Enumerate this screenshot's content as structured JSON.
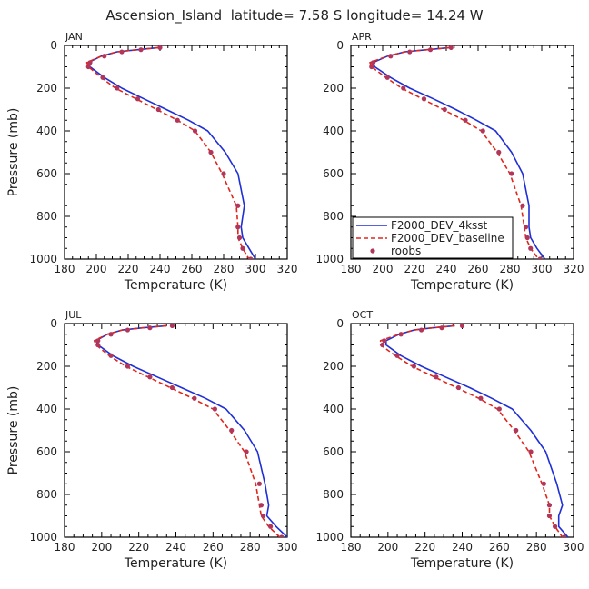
{
  "figure": {
    "title": "Ascension_Island  latitude= 7.58 S longitude= 14.24 W"
  },
  "colors": {
    "model_4ksst": "#1f2fd6",
    "model_baseline": "#e0261c",
    "obs": "#b0365a",
    "axes": "#000000",
    "text": "#222222"
  },
  "chart_data": [
    {
      "type": "line",
      "panel": "JAN",
      "xlabel": "Temperature (K)",
      "ylabel": "Pressure (mb)",
      "xlim": [
        180,
        320
      ],
      "ylim": [
        1000,
        0
      ],
      "xticks": [
        180,
        200,
        220,
        240,
        260,
        280,
        300,
        320
      ],
      "yticks": [
        0,
        200,
        400,
        600,
        800,
        1000
      ],
      "series": [
        {
          "name": "F2000_DEV_4ksst",
          "style": "solid",
          "x": [
            239,
            226,
            213,
            203,
            195,
            196,
            205,
            216,
            230,
            244,
            258,
            270,
            281,
            289,
            293,
            291,
            292,
            296,
            300
          ],
          "y": [
            10,
            20,
            30,
            50,
            80,
            100,
            150,
            200,
            250,
            300,
            350,
            400,
            500,
            600,
            750,
            850,
            900,
            950,
            1000
          ]
        },
        {
          "name": "F2000_DEV_baseline",
          "style": "dashed",
          "x": [
            239,
            226,
            213,
            203,
            194,
            195,
            203,
            212,
            225,
            238,
            251,
            262,
            272,
            279,
            288,
            289,
            289,
            292,
            296
          ],
          "y": [
            10,
            20,
            30,
            50,
            80,
            100,
            150,
            200,
            250,
            300,
            350,
            400,
            500,
            600,
            750,
            850,
            900,
            950,
            1000
          ]
        },
        {
          "name": "roobs",
          "style": "markers",
          "x": [
            240,
            228,
            216,
            205,
            196,
            195,
            204,
            213,
            226,
            239,
            251,
            262,
            272,
            280,
            289,
            289,
            290,
            292,
            297
          ],
          "y": [
            10,
            20,
            30,
            50,
            80,
            100,
            150,
            200,
            250,
            300,
            350,
            400,
            500,
            600,
            750,
            850,
            900,
            950,
            1000
          ]
        }
      ]
    },
    {
      "type": "line",
      "panel": "APR",
      "xlabel": "Temperature (K)",
      "ylabel": "",
      "xlim": [
        180,
        320
      ],
      "ylim": [
        1000,
        0
      ],
      "xticks": [
        180,
        200,
        220,
        240,
        260,
        280,
        300,
        320
      ],
      "yticks": [
        0,
        200,
        400,
        600,
        800,
        1000
      ],
      "legend": {
        "placement": "lower-left"
      },
      "series": [
        {
          "name": "F2000_DEV_4ksst",
          "style": "solid",
          "x": [
            242,
            228,
            214,
            203,
            194,
            195,
            205,
            217,
            232,
            246,
            259,
            271,
            281,
            288,
            292,
            292,
            293,
            297,
            302
          ],
          "y": [
            10,
            20,
            30,
            50,
            80,
            100,
            150,
            200,
            250,
            300,
            350,
            400,
            500,
            600,
            750,
            850,
            900,
            950,
            1000
          ]
        },
        {
          "name": "F2000_DEV_baseline",
          "style": "dashed",
          "x": [
            242,
            228,
            214,
            203,
            192,
            193,
            202,
            212,
            225,
            238,
            251,
            262,
            272,
            280,
            287,
            289,
            290,
            293,
            298
          ],
          "y": [
            10,
            20,
            30,
            50,
            80,
            100,
            150,
            200,
            250,
            300,
            350,
            400,
            500,
            600,
            750,
            850,
            900,
            950,
            1000
          ]
        },
        {
          "name": "roobs",
          "style": "markers",
          "x": [
            243,
            230,
            217,
            205,
            194,
            193,
            203,
            213,
            226,
            239,
            252,
            263,
            273,
            281,
            288,
            290,
            291,
            293,
            299
          ],
          "y": [
            10,
            20,
            30,
            50,
            80,
            100,
            150,
            200,
            250,
            300,
            350,
            400,
            500,
            600,
            750,
            850,
            900,
            950,
            1000
          ]
        }
      ]
    },
    {
      "type": "line",
      "panel": "JUL",
      "xlabel": "Temperature (K)",
      "ylabel": "Pressure (mb)",
      "xlim": [
        180,
        300
      ],
      "ylim": [
        1000,
        0
      ],
      "xticks": [
        180,
        200,
        220,
        240,
        260,
        280,
        300
      ],
      "yticks": [
        0,
        200,
        400,
        600,
        800,
        1000
      ],
      "series": [
        {
          "name": "F2000_DEV_4ksst",
          "style": "solid",
          "x": [
            235,
            222,
            211,
            203,
            197,
            198,
            206,
            217,
            230,
            243,
            256,
            267,
            277,
            284,
            288,
            290,
            289,
            294,
            300
          ],
          "y": [
            10,
            20,
            30,
            50,
            80,
            100,
            150,
            200,
            250,
            300,
            350,
            400,
            500,
            600,
            750,
            850,
            900,
            950,
            1000
          ]
        },
        {
          "name": "F2000_DEV_baseline",
          "style": "dashed",
          "x": [
            235,
            222,
            211,
            203,
            196,
            197,
            204,
            213,
            225,
            237,
            249,
            260,
            269,
            277,
            283,
            285,
            286,
            290,
            296
          ],
          "y": [
            10,
            20,
            30,
            50,
            80,
            100,
            150,
            200,
            250,
            300,
            350,
            400,
            500,
            600,
            750,
            850,
            900,
            950,
            1000
          ]
        },
        {
          "name": "roobs",
          "style": "markers",
          "x": [
            238,
            226,
            214,
            205,
            198,
            198,
            205,
            214,
            226,
            238,
            250,
            261,
            270,
            278,
            285,
            286,
            287,
            291,
            297
          ],
          "y": [
            10,
            20,
            30,
            50,
            80,
            100,
            150,
            200,
            250,
            300,
            350,
            400,
            500,
            600,
            750,
            850,
            900,
            950,
            1000
          ]
        }
      ]
    },
    {
      "type": "line",
      "panel": "OCT",
      "xlabel": "Temperature (K)",
      "ylabel": "",
      "xlim": [
        180,
        300
      ],
      "ylim": [
        1000,
        0
      ],
      "xticks": [
        180,
        200,
        220,
        240,
        260,
        280,
        300
      ],
      "yticks": [
        0,
        200,
        400,
        600,
        800,
        1000
      ],
      "series": [
        {
          "name": "F2000_DEV_4ksst",
          "style": "solid",
          "x": [
            236,
            224,
            214,
            206,
            199,
            199,
            207,
            218,
            231,
            244,
            256,
            267,
            277,
            285,
            291,
            294,
            292,
            292,
            297
          ],
          "y": [
            10,
            20,
            30,
            50,
            80,
            100,
            150,
            200,
            250,
            300,
            350,
            400,
            500,
            600,
            750,
            850,
            900,
            950,
            1000
          ]
        },
        {
          "name": "F2000_DEV_baseline",
          "style": "dashed",
          "x": [
            236,
            224,
            214,
            206,
            196,
            196,
            204,
            213,
            225,
            237,
            249,
            259,
            268,
            276,
            283,
            287,
            287,
            290,
            294
          ],
          "y": [
            10,
            20,
            30,
            50,
            80,
            100,
            150,
            200,
            250,
            300,
            350,
            400,
            500,
            600,
            750,
            850,
            900,
            950,
            1000
          ]
        },
        {
          "name": "roobs",
          "style": "markers",
          "x": [
            240,
            229,
            218,
            207,
            198,
            197,
            205,
            214,
            226,
            238,
            250,
            260,
            269,
            277,
            284,
            287,
            287,
            290,
            295
          ],
          "y": [
            10,
            20,
            30,
            50,
            80,
            100,
            150,
            200,
            250,
            300,
            350,
            400,
            500,
            600,
            750,
            850,
            900,
            950,
            1000
          ]
        }
      ]
    }
  ]
}
